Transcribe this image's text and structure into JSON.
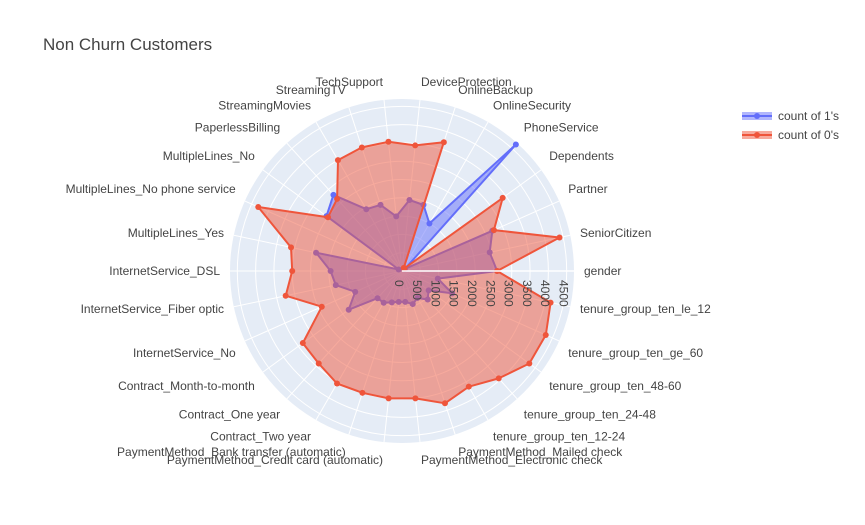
{
  "chart_data": {
    "type": "radar",
    "title": "Non Churn Customers",
    "categories": [
      "gender",
      "SeniorCitizen",
      "Partner",
      "Dependents",
      "PhoneService",
      "OnlineSecurity",
      "OnlineBackup",
      "DeviceProtection",
      "TechSupport",
      "StreamingTV",
      "StreamingMovies",
      "PaperlessBilling",
      "MultipleLines_No",
      "MultipleLines_No phone service",
      "MultipleLines_Yes",
      "InternetService_DSL",
      "InternetService_Fiber optic",
      "InternetService_No",
      "Contract_Month-to-month",
      "Contract_One year",
      "Contract_Two year",
      "PaymentMethod_Bank transfer (automatic)",
      "PaymentMethod_Credit card (automatic)",
      "PaymentMethod_Electronic check",
      "PaymentMethod_Mailed check",
      "tenure_group_ten_12-24",
      "tenure_group_ten_24-48",
      "tenure_group_ten_48-60",
      "tenure_group_ten_ge_60",
      "tenure_group_ten_le_12"
    ],
    "series": [
      {
        "name": "count of 1's",
        "color": "#636efa",
        "values": [
          2600,
          2450,
          2700,
          100,
          4650,
          1500,
          1900,
          1950,
          1500,
          1900,
          1950,
          2800,
          2550,
          100,
          2400,
          1950,
          1850,
          1400,
          1800,
          1000,
          1000,
          900,
          850,
          850,
          950,
          850,
          1050,
          900,
          1500,
          1000
        ]
      },
      {
        "name": "count of 0's",
        "color": "#ef553b",
        "values": [
          2600,
          4400,
          2750,
          3400,
          100,
          100,
          3700,
          3450,
          3550,
          3550,
          3500,
          2650,
          2500,
          4300,
          3100,
          3000,
          3250,
          2400,
          3350,
          3400,
          3550,
          3500,
          3500,
          3500,
          3800,
          3650,
          3950,
          4300,
          4300,
          4150
        ]
      }
    ],
    "radial_ticks": [
      "0",
      "500",
      "1000",
      "1500",
      "2000",
      "2500",
      "3000",
      "3500",
      "4000",
      "4500"
    ],
    "radial_range": [
      0,
      4700
    ],
    "legend_position": "top-right"
  }
}
